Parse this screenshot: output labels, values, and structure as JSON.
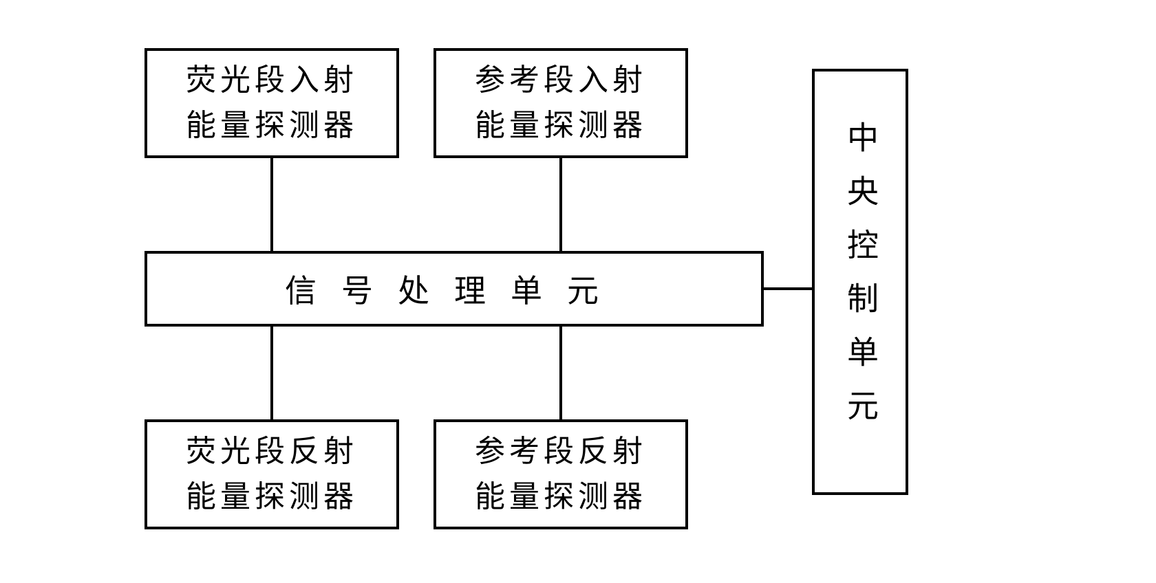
{
  "diagram": {
    "type": "flowchart",
    "background_color": "#ffffff",
    "border_color": "#000000",
    "border_width": 4,
    "text_color": "#000000",
    "font_family": "SimSun",
    "nodes": {
      "top_left": {
        "line1": "荧光段入射",
        "line2": "能量探测器",
        "fontsize": 44
      },
      "top_right": {
        "line1": "参考段入射",
        "line2": "能量探测器",
        "fontsize": 44
      },
      "middle": {
        "text": "信号处理单元",
        "fontsize": 46
      },
      "bottom_left": {
        "line1": "荧光段反射",
        "line2": "能量探测器",
        "fontsize": 44
      },
      "bottom_right": {
        "line1": "参考段反射",
        "line2": "能量探测器",
        "fontsize": 44
      },
      "right_tall": {
        "text": "中央控制单元",
        "fontsize": 46
      }
    },
    "edges": [
      {
        "from": "top_left",
        "to": "middle"
      },
      {
        "from": "top_right",
        "to": "middle"
      },
      {
        "from": "middle",
        "to": "bottom_left"
      },
      {
        "from": "middle",
        "to": "bottom_right"
      },
      {
        "from": "middle",
        "to": "right_tall"
      }
    ]
  }
}
